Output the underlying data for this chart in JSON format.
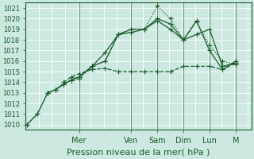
{
  "xlabel": "Pression niveau de la mer( hPa )",
  "bg_color": "#cce8e0",
  "grid_color": "#b0d8cc",
  "line_color": "#1a5c2a",
  "separator_color": "#6a9a7a",
  "ylim": [
    1009.5,
    1021.5
  ],
  "yticks": [
    1010,
    1011,
    1012,
    1013,
    1014,
    1015,
    1016,
    1017,
    1018,
    1019,
    1020,
    1021
  ],
  "day_labels": [
    "Mer",
    "Ven",
    "Sam",
    "Dim",
    "Lun",
    "M"
  ],
  "day_x": [
    2.0,
    4.0,
    5.0,
    6.0,
    7.0,
    8.0
  ],
  "sep_x": [
    2.0,
    4.0,
    5.0,
    6.0,
    7.0,
    8.0
  ],
  "xlim": [
    -0.05,
    8.6
  ],
  "series": [
    {
      "x": [
        0.0,
        0.4,
        0.8,
        1.1,
        1.4,
        1.7,
        2.0,
        2.5,
        3.0,
        3.5,
        4.0,
        4.5,
        5.0,
        5.5,
        6.0,
        6.5,
        7.0,
        7.5,
        8.0
      ],
      "y": [
        1010.0,
        1011.0,
        1013.0,
        1013.3,
        1013.8,
        1014.2,
        1014.3,
        1015.5,
        1016.0,
        1018.5,
        1019.0,
        1019.0,
        1021.2,
        1020.0,
        1018.0,
        1019.7,
        1017.5,
        1016.0,
        1015.7
      ],
      "style": "dotted"
    },
    {
      "x": [
        0.8,
        1.1,
        1.4,
        1.7,
        2.0,
        2.5,
        3.0,
        3.5,
        4.0,
        4.5,
        5.0,
        5.5,
        6.0,
        6.5,
        7.0,
        7.5,
        8.0
      ],
      "y": [
        1013.0,
        1013.3,
        1013.8,
        1014.2,
        1014.5,
        1015.5,
        1016.8,
        1018.5,
        1019.0,
        1019.0,
        1019.8,
        1019.0,
        1018.0,
        1019.8,
        1017.0,
        1015.2,
        1016.0
      ],
      "style": "solid"
    },
    {
      "x": [
        0.0,
        0.4,
        0.8,
        1.1,
        1.4,
        1.7,
        2.0,
        2.5,
        3.0,
        3.5,
        4.0,
        4.5,
        5.0,
        5.5,
        6.0,
        6.5,
        7.0,
        7.5,
        8.0
      ],
      "y": [
        1010.0,
        1011.0,
        1013.0,
        1013.3,
        1013.8,
        1014.2,
        1014.5,
        1015.5,
        1016.0,
        1018.5,
        1018.7,
        1019.0,
        1020.0,
        1019.5,
        1018.0,
        1018.5,
        1019.0,
        1015.5,
        1015.8
      ],
      "style": "solid"
    },
    {
      "x": [
        1.4,
        1.7,
        2.0,
        2.5,
        3.0,
        3.5,
        4.0,
        4.5,
        5.0,
        5.5,
        6.0,
        6.5,
        7.0,
        7.5,
        8.0
      ],
      "y": [
        1014.0,
        1014.5,
        1014.8,
        1015.2,
        1015.3,
        1015.0,
        1015.0,
        1015.0,
        1015.0,
        1015.0,
        1015.5,
        1015.5,
        1015.5,
        1015.2,
        1015.8
      ],
      "style": "dashed"
    }
  ],
  "marker": "+",
  "marker_size": 4,
  "line_width": 0.9,
  "font_size": 7,
  "tick_font_size": 6,
  "xlabel_fontsize": 8
}
